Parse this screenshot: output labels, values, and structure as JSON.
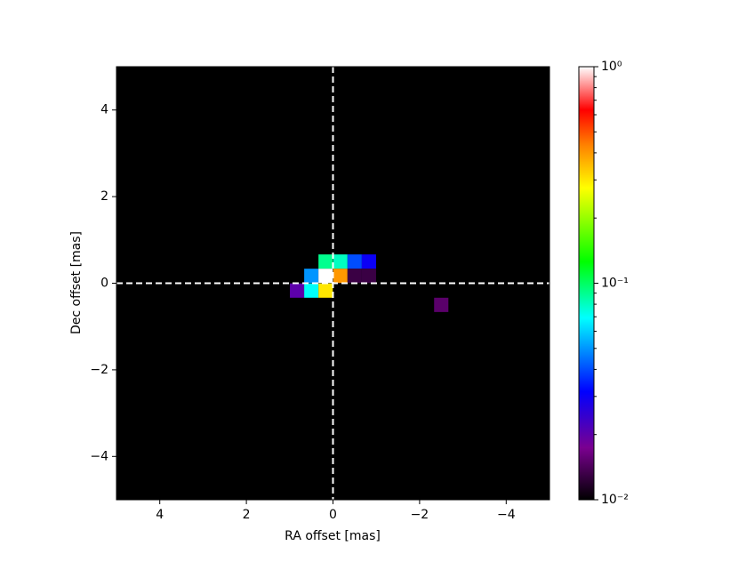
{
  "chart_data": {
    "type": "heatmap",
    "xlabel": "RA offset [mas]",
    "ylabel": "Dec offset [mas]",
    "xlim": [
      5,
      -5
    ],
    "ylim": [
      -5,
      5
    ],
    "xticks": [
      {
        "value": 4,
        "label": "4"
      },
      {
        "value": 2,
        "label": "2"
      },
      {
        "value": 0,
        "label": "0"
      },
      {
        "value": -2,
        "label": "−2"
      },
      {
        "value": -4,
        "label": "−4"
      }
    ],
    "yticks": [
      {
        "value": -4,
        "label": "−4"
      },
      {
        "value": -2,
        "label": "−2"
      },
      {
        "value": 0,
        "label": "0"
      },
      {
        "value": 2,
        "label": "2"
      },
      {
        "value": 4,
        "label": "4"
      }
    ],
    "cell_size": 0.33,
    "x": [
      0.17,
      -0.17,
      -0.5,
      -0.83,
      0.5,
      0.17,
      -0.17,
      -0.5,
      -0.83,
      0.83,
      0.5,
      0.17,
      -2.5
    ],
    "y": [
      0.5,
      0.5,
      0.5,
      0.5,
      0.17,
      0.17,
      0.17,
      0.17,
      0.17,
      -0.17,
      -0.17,
      -0.17,
      -0.5
    ],
    "values": [
      0.09,
      0.08,
      0.04,
      0.03,
      0.05,
      1.0,
      0.4,
      0.013,
      0.013,
      0.02,
      0.07,
      0.3,
      0.015
    ],
    "background": "#000000",
    "vlines": [
      0
    ],
    "hlines": [
      0
    ],
    "line_color": "#ffffff",
    "color_scale": "log",
    "clim": [
      0.01,
      1
    ],
    "cticks": [
      {
        "value": 0.01,
        "label": "10⁻²"
      },
      {
        "value": 0.1,
        "label": "10⁻¹"
      },
      {
        "value": 1,
        "label": "10⁰"
      }
    ],
    "cminor_ticks": [
      0.02,
      0.03,
      0.04,
      0.05,
      0.06,
      0.07,
      0.08,
      0.09,
      0.2,
      0.3,
      0.4,
      0.5,
      0.6,
      0.7,
      0.8,
      0.9
    ],
    "colormap": [
      [
        0,
        "#000000"
      ],
      [
        0.12,
        "#7a0090"
      ],
      [
        0.25,
        "#0000ff"
      ],
      [
        0.42,
        "#00ffff"
      ],
      [
        0.55,
        "#00ff00"
      ],
      [
        0.72,
        "#ffff00"
      ],
      [
        0.82,
        "#ff8000"
      ],
      [
        0.9,
        "#ff0000"
      ],
      [
        1,
        "#ffffff"
      ]
    ]
  }
}
